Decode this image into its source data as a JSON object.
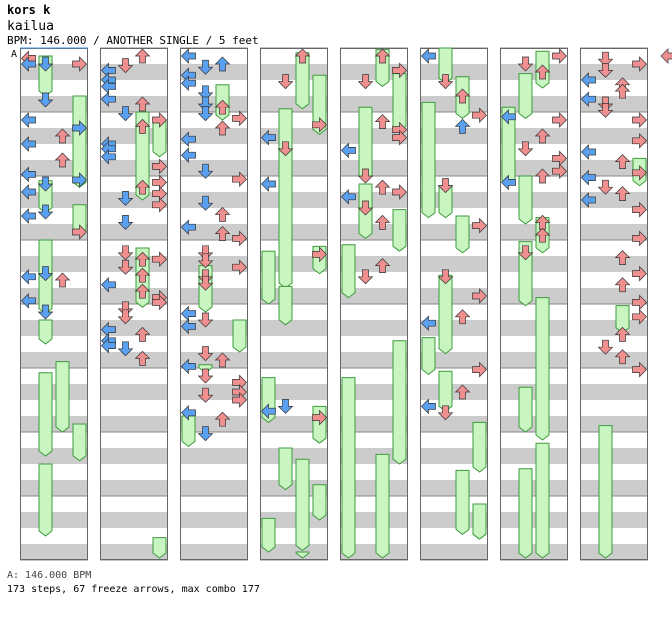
{
  "header": {
    "artist": "kors k",
    "title": "kailua",
    "meta": "BPM: 146.000 / ANOTHER SINGLE / 5 feet"
  },
  "marker": "A",
  "footer": {
    "bpm": "A: 146.000 BPM",
    "stats": "173 steps, 67 freeze arrows, max combo 177"
  },
  "colors": {
    "left": "#5aa0f0",
    "down": "#f08f8f",
    "up": "#f08f8f",
    "right": "#f08f8f",
    "freeze": "#c8f5c0",
    "freezeEdge": "#3c9c3c",
    "stripe": "#cccccc"
  },
  "chart_data": {
    "type": "dance-chart",
    "lanes": [
      "left",
      "down",
      "up",
      "right"
    ],
    "columns": 8,
    "notes": [
      [
        [
          0,
          1,
          0.15
        ],
        [
          1,
          2,
          0.5
        ],
        [
          0,
          0,
          0.5
        ],
        [
          3,
          3,
          0.5
        ],
        [
          1,
          2,
          2.75
        ],
        [
          0,
          0,
          4.0
        ],
        [
          3,
          2,
          4.5
        ],
        [
          2,
          3,
          5.0
        ],
        [
          0,
          0,
          5.5
        ],
        [
          2,
          3,
          6.5
        ],
        [
          0,
          0,
          7.4
        ],
        [
          3,
          2,
          7.75
        ],
        [
          1,
          2,
          8.0
        ],
        [
          0,
          0,
          8.5
        ],
        [
          1,
          2,
          9.75
        ],
        [
          0,
          0,
          10.0
        ],
        [
          3,
          3,
          11.0
        ],
        [
          1,
          2,
          13.6
        ],
        [
          0,
          0,
          13.8
        ],
        [
          2,
          3,
          14.0
        ],
        [
          0,
          0,
          15.3
        ],
        [
          1,
          2,
          16.0
        ]
      ],
      [
        [
          2,
          1,
          0.0
        ],
        [
          1,
          1,
          0.6
        ],
        [
          0,
          0,
          0.9
        ],
        [
          0,
          0,
          1.5
        ],
        [
          0,
          0,
          1.9
        ],
        [
          0,
          0,
          2.7
        ],
        [
          2,
          1,
          3.0
        ],
        [
          1,
          2,
          3.6
        ],
        [
          3,
          3,
          4.0
        ],
        [
          2,
          1,
          4.4
        ],
        [
          0,
          0,
          5.5
        ],
        [
          0,
          0,
          5.8
        ],
        [
          0,
          0,
          6.3
        ],
        [
          3,
          3,
          6.9
        ],
        [
          3,
          3,
          7.9
        ],
        [
          2,
          1,
          8.2
        ],
        [
          3,
          3,
          8.6
        ],
        [
          1,
          2,
          8.9
        ],
        [
          3,
          3,
          9.3
        ],
        [
          1,
          2,
          10.4
        ],
        [
          1,
          1,
          12.3
        ],
        [
          2,
          1,
          12.7
        ],
        [
          3,
          3,
          12.7
        ],
        [
          1,
          1,
          13.2
        ],
        [
          2,
          1,
          13.7
        ],
        [
          0,
          0,
          14.3
        ],
        [
          2,
          1,
          14.7
        ],
        [
          3,
          3,
          15.1
        ],
        [
          3,
          3,
          15.4
        ],
        [
          1,
          1,
          15.8
        ],
        [
          1,
          1,
          16.3
        ],
        [
          0,
          0,
          17.1
        ],
        [
          2,
          1,
          17.4
        ],
        [
          0,
          0,
          17.8
        ],
        [
          0,
          0,
          18.1
        ],
        [
          1,
          2,
          18.3
        ],
        [
          2,
          1,
          18.9
        ]
      ],
      [
        [
          0,
          0,
          0.0
        ],
        [
          1,
          0,
          0.7
        ],
        [
          2,
          2,
          0.5
        ],
        [
          0,
          0,
          1.2
        ],
        [
          0,
          0,
          1.7
        ],
        [
          1,
          2,
          2.3
        ],
        [
          1,
          2,
          3.0
        ],
        [
          2,
          1,
          3.2
        ],
        [
          1,
          2,
          3.6
        ],
        [
          3,
          3,
          3.9
        ],
        [
          2,
          1,
          4.5
        ],
        [
          0,
          0,
          5.2
        ],
        [
          0,
          0,
          6.2
        ],
        [
          1,
          2,
          7.2
        ],
        [
          3,
          3,
          7.7
        ],
        [
          1,
          2,
          9.2
        ],
        [
          2,
          1,
          9.9
        ],
        [
          0,
          0,
          10.7
        ],
        [
          2,
          1,
          11.1
        ],
        [
          3,
          3,
          11.4
        ],
        [
          1,
          1,
          12.3
        ],
        [
          1,
          1,
          12.8
        ],
        [
          3,
          3,
          13.2
        ],
        [
          1,
          1,
          13.8
        ],
        [
          1,
          1,
          14.2
        ],
        [
          0,
          0,
          16.1
        ],
        [
          1,
          1,
          16.5
        ],
        [
          0,
          0,
          16.9
        ],
        [
          1,
          1,
          18.6
        ],
        [
          2,
          1,
          19.0
        ],
        [
          0,
          0,
          19.4
        ],
        [
          1,
          1,
          20.0
        ],
        [
          3,
          3,
          20.4
        ],
        [
          3,
          3,
          21.0
        ],
        [
          1,
          1,
          21.2
        ],
        [
          3,
          3,
          21.5
        ],
        [
          0,
          0,
          22.3
        ],
        [
          2,
          1,
          22.7
        ],
        [
          1,
          2,
          23.6
        ]
      ],
      [
        [
          2,
          1,
          0.0
        ],
        [
          1,
          1,
          1.6
        ],
        [
          3,
          3,
          4.3
        ],
        [
          0,
          0,
          5.1
        ],
        [
          1,
          1,
          5.8
        ],
        [
          0,
          0,
          8.0
        ],
        [
          3,
          3,
          12.4
        ],
        [
          1,
          2,
          21.9
        ],
        [
          0,
          0,
          22.2
        ],
        [
          3,
          3,
          22.6
        ]
      ],
      [
        [
          2,
          1,
          0.0
        ],
        [
          3,
          3,
          0.9
        ],
        [
          1,
          1,
          1.6
        ],
        [
          2,
          1,
          4.1
        ],
        [
          3,
          3,
          4.6
        ],
        [
          3,
          3,
          5.1
        ],
        [
          0,
          0,
          5.9
        ],
        [
          1,
          1,
          7.5
        ],
        [
          2,
          1,
          8.2
        ],
        [
          3,
          3,
          8.5
        ],
        [
          0,
          0,
          8.8
        ],
        [
          1,
          1,
          9.5
        ],
        [
          2,
          1,
          10.4
        ],
        [
          2,
          1,
          13.1
        ],
        [
          1,
          1,
          13.8
        ]
      ],
      [
        [
          0,
          0,
          0.0
        ],
        [
          1,
          1,
          1.6
        ],
        [
          2,
          1,
          2.5
        ],
        [
          3,
          3,
          3.7
        ],
        [
          2,
          2,
          4.4
        ],
        [
          1,
          1,
          8.1
        ],
        [
          3,
          3,
          10.6
        ],
        [
          1,
          1,
          13.8
        ],
        [
          3,
          3,
          15.0
        ],
        [
          0,
          0,
          16.7
        ],
        [
          2,
          1,
          16.3
        ],
        [
          3,
          3,
          19.6
        ],
        [
          2,
          1,
          21.0
        ],
        [
          0,
          0,
          21.9
        ],
        [
          1,
          1,
          22.3
        ]
      ],
      [
        [
          3,
          3,
          0.0
        ],
        [
          1,
          1,
          0.5
        ],
        [
          2,
          1,
          1.0
        ],
        [
          0,
          0,
          3.8
        ],
        [
          3,
          3,
          4.0
        ],
        [
          2,
          1,
          5.0
        ],
        [
          1,
          1,
          5.8
        ],
        [
          3,
          3,
          6.4
        ],
        [
          3,
          3,
          7.2
        ],
        [
          2,
          1,
          7.5
        ],
        [
          0,
          0,
          7.9
        ],
        [
          2,
          3,
          10.4
        ],
        [
          2,
          3,
          11.2
        ],
        [
          1,
          1,
          12.3
        ]
      ],
      [
        [
          1,
          1,
          0.2
        ],
        [
          3,
          3,
          0.5
        ],
        [
          1,
          1,
          0.9
        ],
        [
          0,
          0,
          1.5
        ],
        [
          2,
          1,
          1.8
        ],
        [
          2,
          1,
          2.2
        ],
        [
          0,
          0,
          2.7
        ],
        [
          1,
          1,
          3.0
        ],
        [
          1,
          1,
          3.4
        ],
        [
          3,
          3,
          4.0
        ],
        [
          3,
          3,
          5.3
        ],
        [
          0,
          0,
          6.0
        ],
        [
          2,
          1,
          6.6
        ],
        [
          3,
          3,
          7.3
        ],
        [
          0,
          0,
          7.6
        ],
        [
          1,
          1,
          8.2
        ],
        [
          2,
          1,
          8.6
        ],
        [
          0,
          0,
          9.0
        ],
        [
          3,
          3,
          9.6
        ],
        [
          3,
          3,
          11.4
        ],
        [
          2,
          1,
          12.6
        ],
        [
          3,
          3,
          13.6
        ],
        [
          2,
          1,
          14.3
        ],
        [
          3,
          3,
          15.4
        ],
        [
          3,
          3,
          16.3
        ],
        [
          2,
          1,
          17.4
        ],
        [
          1,
          1,
          18.2
        ],
        [
          2,
          1,
          18.8
        ],
        [
          3,
          3,
          19.6
        ]
      ]
    ],
    "freezes": [
      [
        [
          1,
          0.5,
          3.0
        ],
        [
          3,
          3.0,
          8.7
        ],
        [
          1,
          8.3,
          10.3
        ],
        [
          3,
          9.8,
          11.7
        ],
        [
          1,
          12.0,
          16.6
        ],
        [
          1,
          17.0,
          18.5
        ],
        [
          2,
          19.6,
          24.0
        ],
        [
          1,
          20.3,
          25.5
        ],
        [
          3,
          23.5,
          25.8
        ],
        [
          1,
          26.0,
          30.5
        ],
        [
          3,
          34.5,
          34.6
        ]
      ],
      [
        [
          2,
          4.0,
          9.5
        ],
        [
          3,
          4.5,
          6.8
        ],
        [
          2,
          12.5,
          16.2
        ],
        [
          3,
          30.6,
          34.6
        ]
      ],
      [
        [
          2,
          2.3,
          4.5
        ],
        [
          1,
          13.6,
          16.5
        ],
        [
          3,
          17.0,
          19.0
        ],
        [
          1,
          19.8,
          20.3
        ],
        [
          0,
          23.0,
          24.9
        ],
        [
          0,
          33.0,
          34.4
        ]
      ],
      [
        [
          2,
          0.3,
          3.8
        ],
        [
          3,
          1.7,
          5.4
        ],
        [
          1,
          3.8,
          15.0
        ],
        [
          3,
          12.4,
          14.1
        ],
        [
          0,
          12.7,
          16.0
        ],
        [
          1,
          14.9,
          17.3
        ],
        [
          0,
          20.6,
          23.4
        ],
        [
          3,
          22.4,
          24.7
        ],
        [
          1,
          25.0,
          27.6
        ],
        [
          2,
          25.7,
          31.4
        ],
        [
          3,
          27.3,
          29.5
        ],
        [
          0,
          29.4,
          31.5
        ],
        [
          2,
          31.5,
          36.1
        ]
      ],
      [
        [
          2,
          0.1,
          2.4
        ],
        [
          3,
          1.6,
          5.2
        ],
        [
          1,
          3.7,
          8.3
        ],
        [
          1,
          8.5,
          11.9
        ],
        [
          3,
          10.1,
          12.7
        ],
        [
          0,
          12.3,
          15.6
        ],
        [
          3,
          18.3,
          26.0
        ],
        [
          0,
          20.6,
          34.6
        ],
        [
          2,
          25.4,
          36.0
        ]
      ],
      [
        [
          1,
          0.0,
          2.2
        ],
        [
          2,
          1.8,
          4.4
        ],
        [
          0,
          3.4,
          10.6
        ],
        [
          1,
          8.6,
          10.6
        ],
        [
          2,
          10.5,
          12.8
        ],
        [
          1,
          14.2,
          19.1
        ],
        [
          0,
          18.1,
          20.4
        ],
        [
          1,
          20.2,
          22.7
        ],
        [
          3,
          23.4,
          26.5
        ],
        [
          2,
          26.4,
          30.4
        ],
        [
          3,
          28.5,
          30.7
        ]
      ],
      [
        [
          2,
          0.2,
          2.5
        ],
        [
          1,
          1.6,
          4.4
        ],
        [
          0,
          3.7,
          8.6
        ],
        [
          1,
          8.0,
          11.0
        ],
        [
          2,
          10.6,
          12.8
        ],
        [
          1,
          12.1,
          16.1
        ],
        [
          2,
          15.6,
          24.5
        ],
        [
          1,
          21.2,
          24.0
        ],
        [
          2,
          24.7,
          35.9
        ],
        [
          1,
          26.3,
          36.0
        ]
      ],
      [
        [
          3,
          6.9,
          8.6
        ],
        [
          2,
          16.1,
          17.8
        ],
        [
          1,
          23.6,
          38.6
        ]
      ]
    ]
  }
}
